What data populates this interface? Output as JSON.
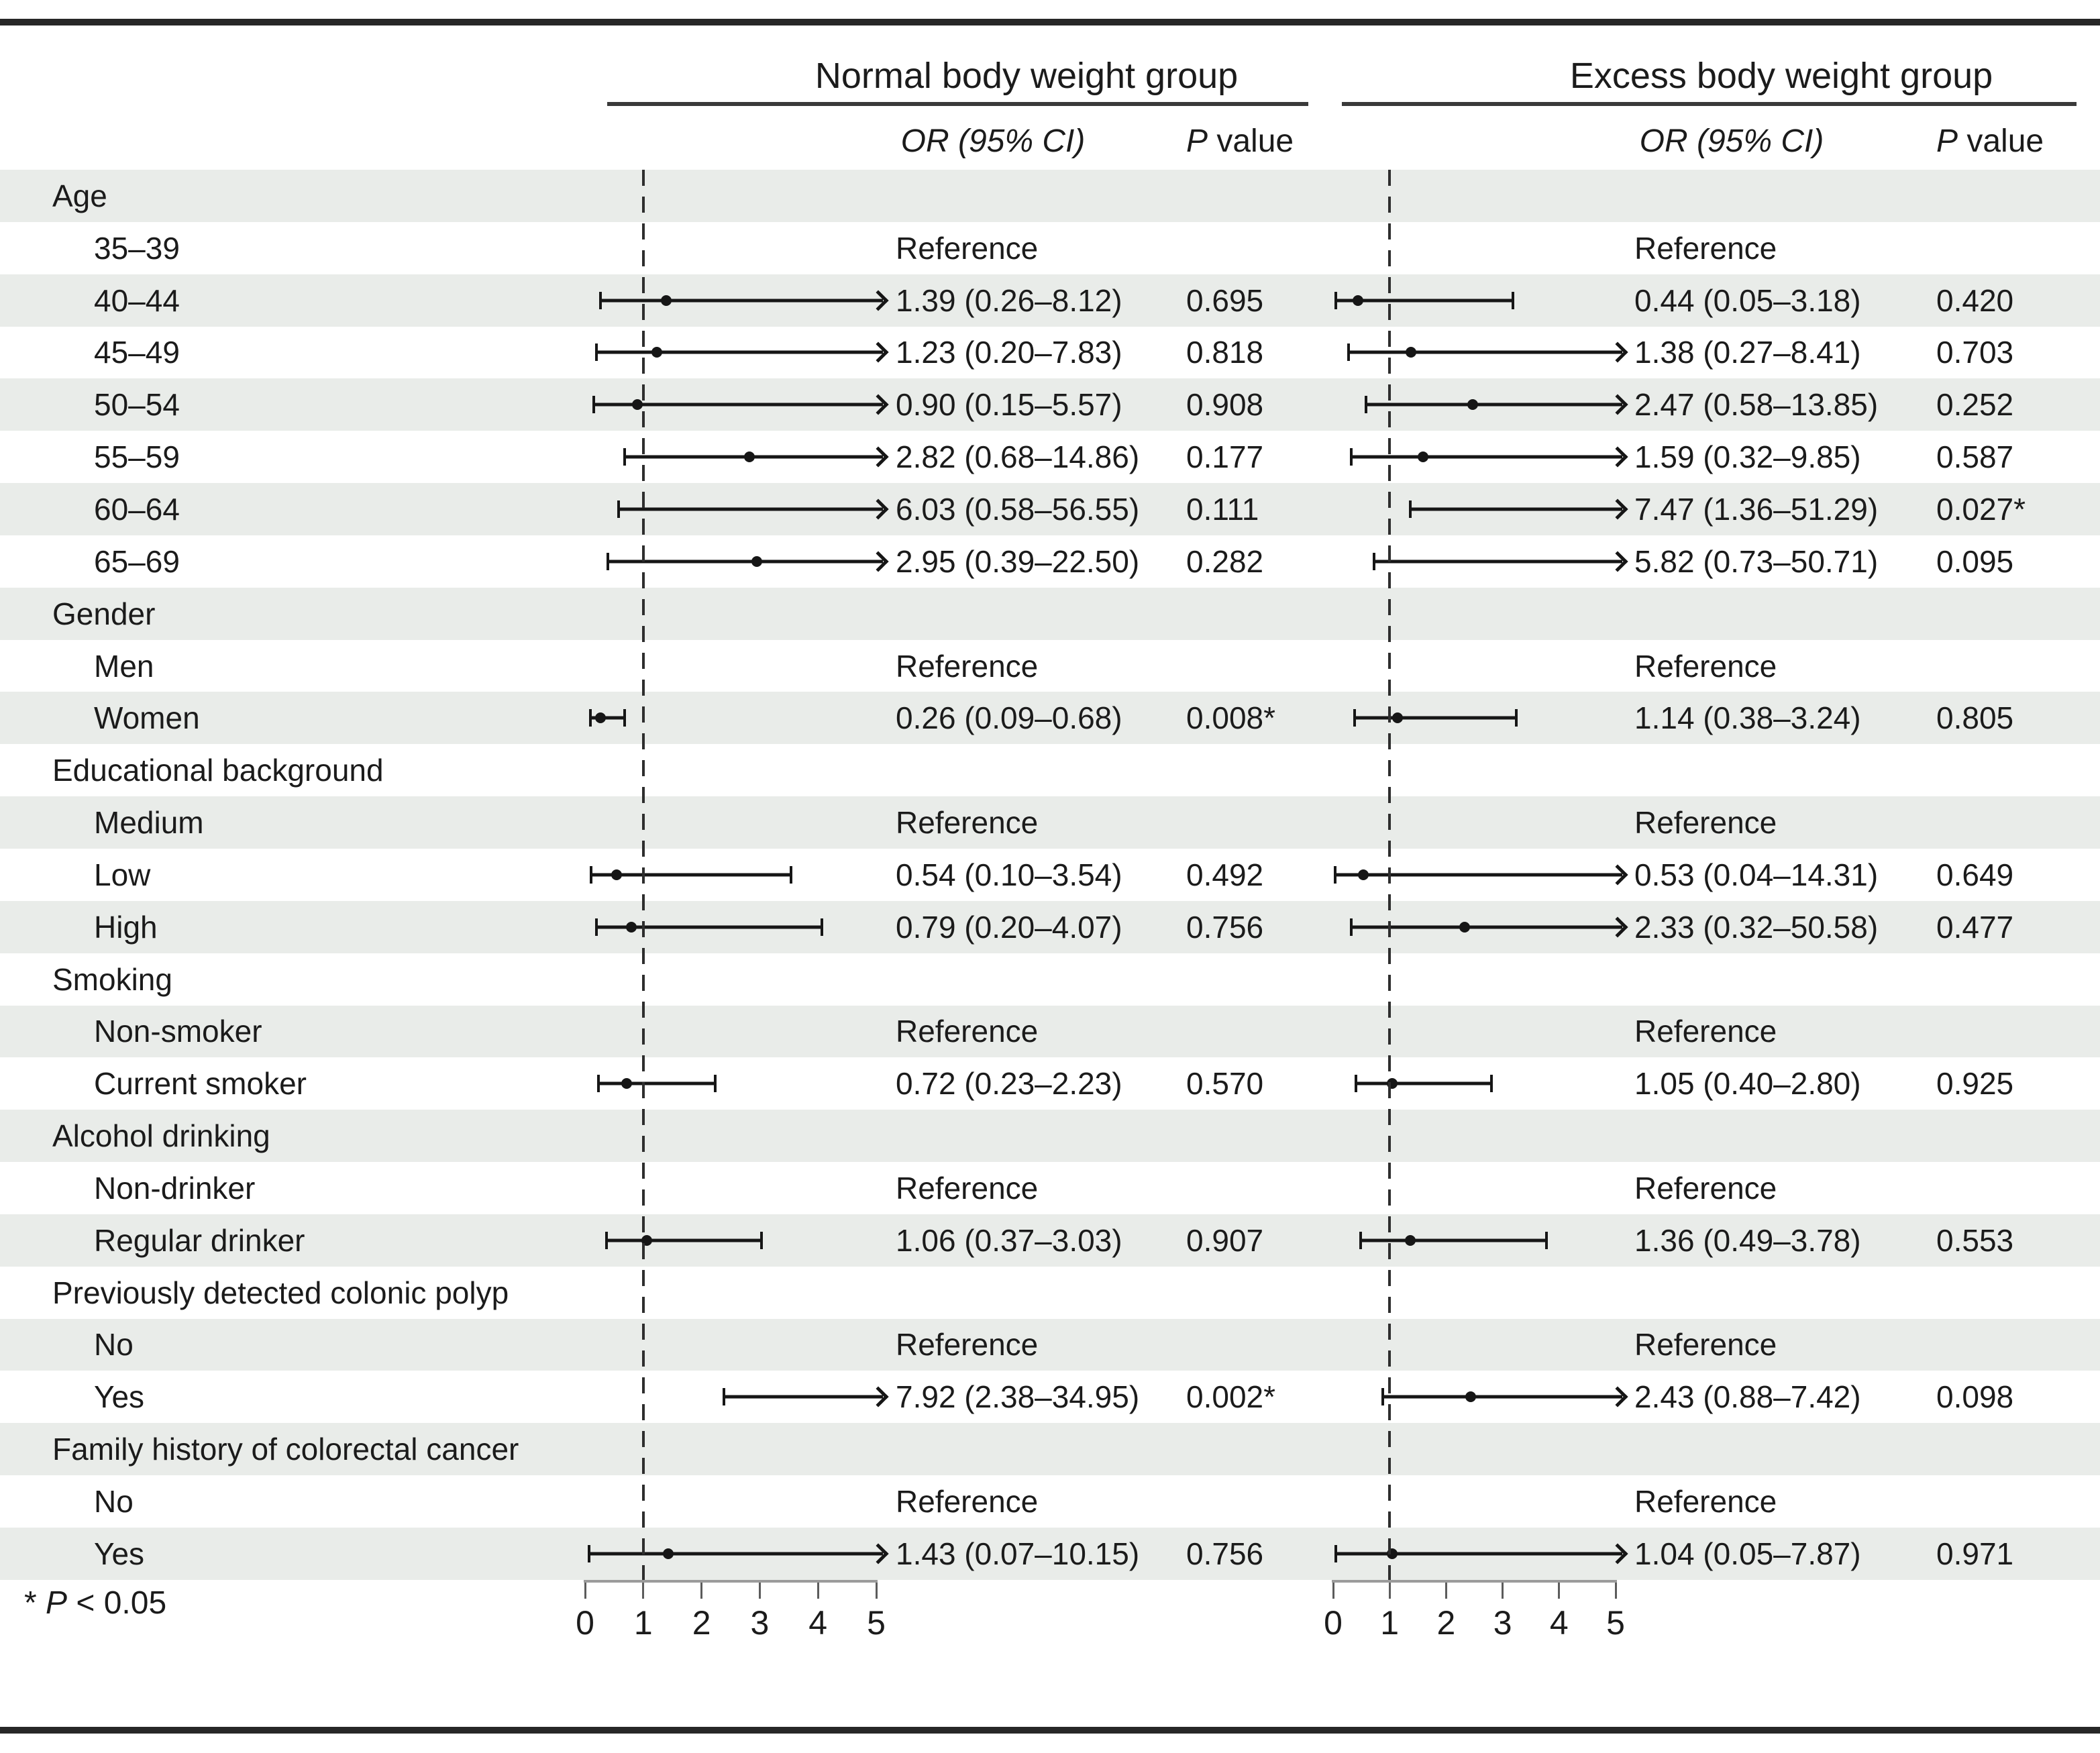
{
  "colors": {
    "row_shade": "#e9ece9",
    "text": "#1b1b1b",
    "whisker": "#161616",
    "border_rule": "#272727",
    "axis_line": "#9b9b9b",
    "reference_dash_line": "#2e2e2e"
  },
  "footnote": {
    "prefix": "* ",
    "italic": "P",
    "rest": " < 0.05"
  },
  "chart_data": {
    "type": "forest",
    "axis": {
      "min": 0,
      "max": 5,
      "ticks": [
        0,
        1,
        2,
        3,
        4,
        5
      ],
      "reference_line": 1
    },
    "groups": [
      {
        "title": "Normal body weight group"
      },
      {
        "title": "Excess body weight group"
      }
    ],
    "columns": {
      "or_header": "OR (95% CI)",
      "p_header_italic": "P",
      "p_header_rest": " value"
    },
    "reference_text": "Reference",
    "rows": [
      {
        "label": "Age",
        "type": "category"
      },
      {
        "label": "35–39",
        "type": "reference"
      },
      {
        "label": "40–44",
        "type": "estimate",
        "normal": {
          "est": 1.39,
          "lo": 0.26,
          "hi": 8.12,
          "or_text": "1.39 (0.26–8.12)",
          "p_text": "0.695"
        },
        "excess": {
          "est": 0.44,
          "lo": 0.05,
          "hi": 3.18,
          "or_text": "0.44 (0.05–3.18)",
          "p_text": "0.420"
        }
      },
      {
        "label": "45–49",
        "type": "estimate",
        "normal": {
          "est": 1.23,
          "lo": 0.2,
          "hi": 7.83,
          "or_text": "1.23 (0.20–7.83)",
          "p_text": "0.818"
        },
        "excess": {
          "est": 1.38,
          "lo": 0.27,
          "hi": 8.41,
          "or_text": "1.38 (0.27–8.41)",
          "p_text": "0.703"
        }
      },
      {
        "label": "50–54",
        "type": "estimate",
        "normal": {
          "est": 0.9,
          "lo": 0.15,
          "hi": 5.57,
          "or_text": "0.90 (0.15–5.57)",
          "p_text": "0.908"
        },
        "excess": {
          "est": 2.47,
          "lo": 0.58,
          "hi": 13.85,
          "or_text": "2.47 (0.58–13.85)",
          "p_text": "0.252"
        }
      },
      {
        "label": "55–59",
        "type": "estimate",
        "normal": {
          "est": 2.82,
          "lo": 0.68,
          "hi": 14.86,
          "or_text": "2.82 (0.68–14.86)",
          "p_text": "0.177"
        },
        "excess": {
          "est": 1.59,
          "lo": 0.32,
          "hi": 9.85,
          "or_text": "1.59 (0.32–9.85)",
          "p_text": "0.587"
        }
      },
      {
        "label": "60–64",
        "type": "estimate",
        "normal": {
          "est": 6.03,
          "lo": 0.58,
          "hi": 56.55,
          "or_text": "6.03 (0.58–56.55)",
          "p_text": "0.111"
        },
        "excess": {
          "est": 7.47,
          "lo": 1.36,
          "hi": 51.29,
          "or_text": "7.47 (1.36–51.29)",
          "p_text": "0.027*"
        }
      },
      {
        "label": "65–69",
        "type": "estimate",
        "normal": {
          "est": 2.95,
          "lo": 0.39,
          "hi": 22.5,
          "or_text": "2.95 (0.39–22.50)",
          "p_text": "0.282"
        },
        "excess": {
          "est": 5.82,
          "lo": 0.73,
          "hi": 50.71,
          "or_text": "5.82 (0.73–50.71)",
          "p_text": "0.095"
        }
      },
      {
        "label": "Gender",
        "type": "category"
      },
      {
        "label": "Men",
        "type": "reference"
      },
      {
        "label": "Women",
        "type": "estimate",
        "normal": {
          "est": 0.26,
          "lo": 0.09,
          "hi": 0.68,
          "or_text": "0.26 (0.09–0.68)",
          "p_text": "0.008*"
        },
        "excess": {
          "est": 1.14,
          "lo": 0.38,
          "hi": 3.24,
          "or_text": "1.14 (0.38–3.24)",
          "p_text": "0.805"
        }
      },
      {
        "label": "Educational background",
        "type": "category"
      },
      {
        "label": "Medium",
        "type": "reference"
      },
      {
        "label": "Low",
        "type": "estimate",
        "normal": {
          "est": 0.54,
          "lo": 0.1,
          "hi": 3.54,
          "or_text": "0.54 (0.10–3.54)",
          "p_text": "0.492"
        },
        "excess": {
          "est": 0.53,
          "lo": 0.04,
          "hi": 14.31,
          "or_text": "0.53 (0.04–14.31)",
          "p_text": "0.649"
        }
      },
      {
        "label": "High",
        "type": "estimate",
        "normal": {
          "est": 0.79,
          "lo": 0.2,
          "hi": 4.07,
          "or_text": "0.79 (0.20–4.07)",
          "p_text": "0.756"
        },
        "excess": {
          "est": 2.33,
          "lo": 0.32,
          "hi": 50.58,
          "or_text": "2.33 (0.32–50.58)",
          "p_text": "0.477"
        }
      },
      {
        "label": "Smoking",
        "type": "category"
      },
      {
        "label": "Non-smoker",
        "type": "reference"
      },
      {
        "label": "Current smoker",
        "type": "estimate",
        "normal": {
          "est": 0.72,
          "lo": 0.23,
          "hi": 2.23,
          "or_text": "0.72 (0.23–2.23)",
          "p_text": "0.570"
        },
        "excess": {
          "est": 1.05,
          "lo": 0.4,
          "hi": 2.8,
          "or_text": "1.05 (0.40–2.80)",
          "p_text": "0.925"
        }
      },
      {
        "label": "Alcohol drinking",
        "type": "category"
      },
      {
        "label": "Non-drinker",
        "type": "reference"
      },
      {
        "label": "Regular drinker",
        "type": "estimate",
        "normal": {
          "est": 1.06,
          "lo": 0.37,
          "hi": 3.03,
          "or_text": "1.06 (0.37–3.03)",
          "p_text": "0.907"
        },
        "excess": {
          "est": 1.36,
          "lo": 0.49,
          "hi": 3.78,
          "or_text": "1.36 (0.49–3.78)",
          "p_text": "0.553"
        }
      },
      {
        "label": "Previously detected colonic polyp",
        "type": "category"
      },
      {
        "label": "No",
        "type": "reference"
      },
      {
        "label": "Yes",
        "type": "estimate",
        "normal": {
          "est": 7.92,
          "lo": 2.38,
          "hi": 34.95,
          "or_text": "7.92 (2.38–34.95)",
          "p_text": "0.002*"
        },
        "excess": {
          "est": 2.43,
          "lo": 0.88,
          "hi": 7.42,
          "or_text": "2.43 (0.88–7.42)",
          "p_text": "0.098"
        }
      },
      {
        "label": "Family history of colorectal cancer",
        "type": "category"
      },
      {
        "label": "No",
        "type": "reference"
      },
      {
        "label": "Yes",
        "type": "estimate",
        "normal": {
          "est": 1.43,
          "lo": 0.07,
          "hi": 10.15,
          "or_text": "1.43 (0.07–10.15)",
          "p_text": "0.756"
        },
        "excess": {
          "est": 1.04,
          "lo": 0.05,
          "hi": 7.87,
          "or_text": "1.04 (0.05–7.87)",
          "p_text": "0.971"
        }
      }
    ]
  }
}
